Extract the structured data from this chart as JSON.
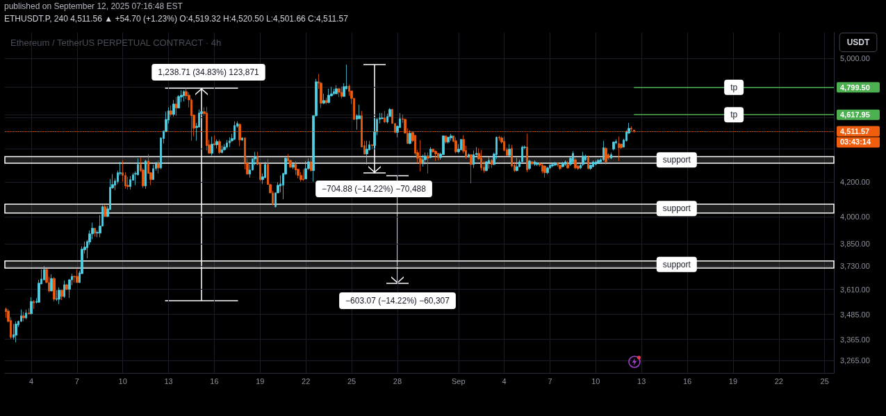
{
  "chart_data": {
    "type": "candlestick",
    "title": "published on September 12, 2025 07:16:48 EST",
    "subtitle": "ETHUSDT.P, 240 4,511.56 ▲ +54.70 (+1.23%) O:4,519.32 H:4,520.50 L:4,501.66 C:4,511.57",
    "ylabel": "USDT",
    "annotations": [
      "Ethereum / TetherUS PERPETUAL CONTRACT · 4h",
      "1,238.71 (34.83%) 123,871",
      "−704.88 (−14.22%) −70,488",
      "−603.07 (−14.22%) −60,307",
      "03:43:14"
    ],
    "x": [
      "2025-08-02T08:00",
      "2025-08-02T12:00",
      "2025-08-02T16:00",
      "2025-08-02T20:00",
      "2025-08-03T00:00",
      "2025-08-03T04:00",
      "2025-08-03T08:00",
      "2025-08-03T12:00",
      "2025-08-03T16:00",
      "2025-08-03T20:00",
      "2025-08-04T00:00",
      "2025-08-04T04:00",
      "2025-08-04T08:00",
      "2025-08-04T12:00",
      "2025-08-04T16:00",
      "2025-08-04T20:00",
      "2025-08-05T00:00",
      "2025-08-05T04:00",
      "2025-08-05T08:00",
      "2025-08-05T12:00",
      "2025-08-05T16:00",
      "2025-08-05T20:00",
      "2025-08-06T00:00",
      "2025-08-06T04:00",
      "2025-08-06T08:00",
      "2025-08-06T12:00",
      "2025-08-06T16:00",
      "2025-08-06T20:00",
      "2025-08-07T00:00",
      "2025-08-07T04:00",
      "2025-08-07T08:00",
      "2025-08-07T12:00",
      "2025-08-07T16:00",
      "2025-08-07T20:00",
      "2025-08-08T00:00",
      "2025-08-08T04:00",
      "2025-08-08T08:00",
      "2025-08-08T12:00",
      "2025-08-08T16:00",
      "2025-08-08T20:00",
      "2025-08-09T00:00",
      "2025-08-09T04:00",
      "2025-08-09T08:00",
      "2025-08-09T12:00",
      "2025-08-09T16:00",
      "2025-08-09T20:00",
      "2025-08-10T00:00",
      "2025-08-10T04:00",
      "2025-08-10T08:00",
      "2025-08-10T12:00",
      "2025-08-10T16:00",
      "2025-08-10T20:00",
      "2025-08-11T00:00",
      "2025-08-11T04:00",
      "2025-08-11T08:00",
      "2025-08-11T12:00",
      "2025-08-11T16:00",
      "2025-08-11T20:00",
      "2025-08-12T00:00",
      "2025-08-12T04:00",
      "2025-08-12T08:00",
      "2025-08-12T12:00",
      "2025-08-12T16:00",
      "2025-08-12T20:00",
      "2025-08-13T00:00",
      "2025-08-13T04:00",
      "2025-08-13T08:00",
      "2025-08-13T12:00",
      "2025-08-13T16:00",
      "2025-08-13T20:00",
      "2025-08-14T00:00",
      "2025-08-14T04:00",
      "2025-08-14T08:00",
      "2025-08-14T12:00",
      "2025-08-14T16:00",
      "2025-08-14T20:00",
      "2025-08-15T00:00",
      "2025-08-15T04:00",
      "2025-08-15T08:00",
      "2025-08-15T12:00",
      "2025-08-15T16:00",
      "2025-08-15T20:00",
      "2025-08-16T00:00",
      "2025-08-16T04:00",
      "2025-08-16T08:00",
      "2025-08-16T12:00",
      "2025-08-16T16:00",
      "2025-08-16T20:00",
      "2025-08-17T00:00",
      "2025-08-17T04:00",
      "2025-08-17T08:00",
      "2025-08-17T12:00",
      "2025-08-17T16:00",
      "2025-08-17T20:00",
      "2025-08-18T00:00",
      "2025-08-18T04:00",
      "2025-08-18T08:00",
      "2025-08-18T12:00",
      "2025-08-18T16:00",
      "2025-08-18T20:00",
      "2025-08-19T00:00",
      "2025-08-19T04:00",
      "2025-08-19T08:00",
      "2025-08-19T12:00",
      "2025-08-19T16:00",
      "2025-08-19T20:00",
      "2025-08-20T00:00",
      "2025-08-20T04:00",
      "2025-08-20T08:00",
      "2025-08-20T12:00",
      "2025-08-20T16:00",
      "2025-08-20T20:00",
      "2025-08-21T00:00",
      "2025-08-21T04:00",
      "2025-08-21T08:00",
      "2025-08-21T12:00",
      "2025-08-21T16:00",
      "2025-08-21T20:00",
      "2025-08-22T00:00",
      "2025-08-22T04:00",
      "2025-08-22T08:00",
      "2025-08-22T12:00",
      "2025-08-22T16:00",
      "2025-08-22T20:00",
      "2025-08-23T00:00",
      "2025-08-23T04:00",
      "2025-08-23T08:00",
      "2025-08-23T12:00",
      "2025-08-23T16:00",
      "2025-08-23T20:00",
      "2025-08-24T00:00",
      "2025-08-24T04:00",
      "2025-08-24T08:00",
      "2025-08-24T12:00",
      "2025-08-24T16:00",
      "2025-08-24T20:00",
      "2025-08-25T00:00",
      "2025-08-25T04:00",
      "2025-08-25T08:00",
      "2025-08-25T12:00",
      "2025-08-25T16:00",
      "2025-08-25T20:00",
      "2025-08-26T00:00",
      "2025-08-26T04:00",
      "2025-08-26T08:00",
      "2025-08-26T12:00",
      "2025-08-26T16:00",
      "2025-08-26T20:00",
      "2025-08-27T00:00",
      "2025-08-27T04:00",
      "2025-08-27T08:00",
      "2025-08-27T12:00",
      "2025-08-27T16:00",
      "2025-08-27T20:00",
      "2025-08-28T00:00",
      "2025-08-28T04:00",
      "2025-08-28T08:00",
      "2025-08-28T12:00",
      "2025-08-28T16:00",
      "2025-08-28T20:00",
      "2025-08-29T00:00",
      "2025-08-29T04:00",
      "2025-08-29T08:00",
      "2025-08-29T12:00",
      "2025-08-29T16:00",
      "2025-08-29T20:00",
      "2025-08-30T00:00",
      "2025-08-30T04:00",
      "2025-08-30T08:00",
      "2025-08-30T12:00",
      "2025-08-30T16:00",
      "2025-08-30T20:00",
      "2025-08-31T00:00",
      "2025-08-31T04:00",
      "2025-08-31T08:00",
      "2025-08-31T12:00",
      "2025-08-31T16:00",
      "2025-08-31T20:00",
      "2025-09-01T00:00",
      "2025-09-01T04:00",
      "2025-09-01T08:00",
      "2025-09-01T12:00",
      "2025-09-01T16:00",
      "2025-09-01T20:00",
      "2025-09-02T00:00",
      "2025-09-02T04:00",
      "2025-09-02T08:00",
      "2025-09-02T12:00",
      "2025-09-02T16:00",
      "2025-09-02T20:00",
      "2025-09-03T00:00",
      "2025-09-03T04:00",
      "2025-09-03T08:00",
      "2025-09-03T12:00",
      "2025-09-03T16:00",
      "2025-09-03T20:00",
      "2025-09-04T00:00",
      "2025-09-04T04:00",
      "2025-09-04T08:00",
      "2025-09-04T12:00",
      "2025-09-04T16:00",
      "2025-09-04T20:00",
      "2025-09-05T00:00",
      "2025-09-05T04:00",
      "2025-09-05T08:00",
      "2025-09-05T12:00",
      "2025-09-05T16:00",
      "2025-09-05T20:00",
      "2025-09-06T00:00",
      "2025-09-06T04:00",
      "2025-09-06T08:00",
      "2025-09-06T12:00",
      "2025-09-06T16:00",
      "2025-09-06T20:00",
      "2025-09-07T00:00",
      "2025-09-07T04:00",
      "2025-09-07T08:00",
      "2025-09-07T12:00",
      "2025-09-07T16:00",
      "2025-09-07T20:00",
      "2025-09-08T00:00",
      "2025-09-08T04:00",
      "2025-09-08T08:00",
      "2025-09-08T12:00",
      "2025-09-08T16:00",
      "2025-09-08T20:00",
      "2025-09-09T00:00",
      "2025-09-09T04:00",
      "2025-09-09T08:00",
      "2025-09-09T12:00",
      "2025-09-09T16:00",
      "2025-09-09T20:00",
      "2025-09-10T00:00",
      "2025-09-10T04:00",
      "2025-09-10T08:00",
      "2025-09-10T12:00",
      "2025-09-10T16:00",
      "2025-09-10T20:00",
      "2025-09-11T00:00",
      "2025-09-11T04:00",
      "2025-09-11T08:00",
      "2025-09-11T12:00",
      "2025-09-11T16:00",
      "2025-09-11T20:00",
      "2025-09-12T00:00",
      "2025-09-12T04:00",
      "2025-09-12T08:00",
      "2025-09-12T12:00"
    ],
    "ohlc": [
      [
        3512,
        3519,
        3468,
        3498
      ],
      [
        3502,
        3512,
        3445,
        3451
      ],
      [
        3455,
        3471,
        3367,
        3374
      ],
      [
        3374,
        3438,
        3364,
        3387
      ],
      [
        3384,
        3451,
        3350,
        3438
      ],
      [
        3434,
        3455,
        3424,
        3451
      ],
      [
        3451,
        3509,
        3448,
        3478
      ],
      [
        3478,
        3498,
        3451,
        3468
      ],
      [
        3468,
        3509,
        3461,
        3492
      ],
      [
        3492,
        3515,
        3485,
        3488
      ],
      [
        3488,
        3570,
        3485,
        3549
      ],
      [
        3549,
        3556,
        3512,
        3542
      ],
      [
        3545,
        3566,
        3539,
        3549
      ],
      [
        3545,
        3659,
        3542,
        3642
      ],
      [
        3638,
        3713,
        3636,
        3663
      ],
      [
        3659,
        3731,
        3656,
        3713
      ],
      [
        3713,
        3716,
        3642,
        3645
      ],
      [
        3645,
        3674,
        3595,
        3602
      ],
      [
        3602,
        3688,
        3600,
        3666
      ],
      [
        3666,
        3674,
        3549,
        3560
      ],
      [
        3560,
        3606,
        3552,
        3563
      ],
      [
        3560,
        3620,
        3536,
        3606
      ],
      [
        3606,
        3608,
        3556,
        3574
      ],
      [
        3574,
        3656,
        3567,
        3634
      ],
      [
        3634,
        3638,
        3606,
        3610
      ],
      [
        3610,
        3663,
        3567,
        3659
      ],
      [
        3659,
        3691,
        3631,
        3677
      ],
      [
        3677,
        3681,
        3645,
        3674
      ],
      [
        3677,
        3713,
        3645,
        3645
      ],
      [
        3645,
        3706,
        3643,
        3695
      ],
      [
        3691,
        3836,
        3689,
        3821
      ],
      [
        3817,
        3862,
        3798,
        3832
      ],
      [
        3828,
        3870,
        3772,
        3862
      ],
      [
        3859,
        3923,
        3844,
        3904
      ],
      [
        3904,
        3966,
        3874,
        3935
      ],
      [
        3935,
        3937,
        3889,
        3908
      ],
      [
        3908,
        3923,
        3885,
        3912
      ],
      [
        3908,
        4009,
        3885,
        3947
      ],
      [
        3947,
        4064,
        3945,
        4056
      ],
      [
        4056,
        4068,
        4001,
        4001
      ],
      [
        4001,
        4060,
        3997,
        4044
      ],
      [
        4040,
        4218,
        4038,
        4169
      ],
      [
        4165,
        4247,
        4160,
        4185
      ],
      [
        4181,
        4222,
        4152,
        4206
      ],
      [
        4202,
        4268,
        4189,
        4255
      ],
      [
        4251,
        4321,
        4239,
        4255
      ],
      [
        4255,
        4330,
        4202,
        4239
      ],
      [
        4239,
        4259,
        4160,
        4177
      ],
      [
        4181,
        4231,
        4156,
        4173
      ],
      [
        4173,
        4235,
        4156,
        4214
      ],
      [
        4210,
        4255,
        4210,
        4243
      ],
      [
        4247,
        4263,
        4181,
        4251
      ],
      [
        4243,
        4343,
        4239,
        4305
      ],
      [
        4305,
        4347,
        4259,
        4268
      ],
      [
        4272,
        4284,
        4165,
        4177
      ],
      [
        4177,
        4334,
        4160,
        4326
      ],
      [
        4326,
        4369,
        4251,
        4251
      ],
      [
        4255,
        4259,
        4181,
        4214
      ],
      [
        4214,
        4305,
        4214,
        4280
      ],
      [
        4280,
        4321,
        4268,
        4309
      ],
      [
        4309,
        4330,
        4251,
        4284
      ],
      [
        4284,
        4473,
        4276,
        4469
      ],
      [
        4465,
        4517,
        4434,
        4512
      ],
      [
        4508,
        4638,
        4508,
        4587
      ],
      [
        4583,
        4666,
        4561,
        4643
      ],
      [
        4643,
        4679,
        4606,
        4620
      ],
      [
        4620,
        4715,
        4606,
        4688
      ],
      [
        4688,
        4734,
        4611,
        4661
      ],
      [
        4661,
        4747,
        4661,
        4738
      ],
      [
        4734,
        4780,
        4700,
        4747
      ],
      [
        4742,
        4780,
        4705,
        4771
      ],
      [
        4771,
        4795,
        4720,
        4742
      ],
      [
        4747,
        4766,
        4665,
        4715
      ],
      [
        4715,
        4725,
        4451,
        4611
      ],
      [
        4615,
        4620,
        4478,
        4530
      ],
      [
        4534,
        4565,
        4451,
        4543
      ],
      [
        4538,
        4652,
        4538,
        4629
      ],
      [
        4625,
        4656,
        4611,
        4638
      ],
      [
        4638,
        4666,
        4611,
        4625
      ],
      [
        4629,
        4670,
        4391,
        4421
      ],
      [
        4426,
        4456,
        4373,
        4373
      ],
      [
        4373,
        4478,
        4360,
        4430
      ],
      [
        4434,
        4486,
        4421,
        4426
      ],
      [
        4426,
        4460,
        4404,
        4447
      ],
      [
        4447,
        4460,
        4369,
        4378
      ],
      [
        4378,
        4421,
        4373,
        4395
      ],
      [
        4395,
        4430,
        4391,
        4412
      ],
      [
        4412,
        4456,
        4404,
        4438
      ],
      [
        4438,
        4473,
        4412,
        4451
      ],
      [
        4451,
        4495,
        4443,
        4465
      ],
      [
        4460,
        4575,
        4456,
        4548
      ],
      [
        4543,
        4575,
        4534,
        4561
      ],
      [
        4556,
        4561,
        4417,
        4456
      ],
      [
        4456,
        4473,
        4451,
        4469
      ],
      [
        4469,
        4473,
        4276,
        4313
      ],
      [
        4313,
        4343,
        4243,
        4247
      ],
      [
        4247,
        4305,
        4226,
        4272
      ],
      [
        4272,
        4343,
        4268,
        4339
      ],
      [
        4339,
        4382,
        4301,
        4352
      ],
      [
        4352,
        4382,
        4301,
        4305
      ],
      [
        4309,
        4313,
        4206,
        4214
      ],
      [
        4214,
        4251,
        4189,
        4231
      ],
      [
        4226,
        4321,
        4222,
        4305
      ],
      [
        4305,
        4339,
        4185,
        4185
      ],
      [
        4185,
        4189,
        4134,
        4136
      ],
      [
        4136,
        4148,
        4064,
        4071
      ],
      [
        4056,
        4138,
        4052,
        4136
      ],
      [
        4136,
        4198,
        4134,
        4181
      ],
      [
        4177,
        4239,
        4140,
        4189
      ],
      [
        4181,
        4255,
        4099,
        4251
      ],
      [
        4247,
        4347,
        4243,
        4343
      ],
      [
        4343,
        4369,
        4321,
        4326
      ],
      [
        4330,
        4334,
        4284,
        4288
      ],
      [
        4288,
        4321,
        4276,
        4305
      ],
      [
        4305,
        4326,
        4243,
        4272
      ],
      [
        4276,
        4280,
        4222,
        4239
      ],
      [
        4239,
        4259,
        4202,
        4214
      ],
      [
        4218,
        4276,
        4206,
        4214
      ],
      [
        4218,
        4326,
        4218,
        4280
      ],
      [
        4280,
        4343,
        4272,
        4321
      ],
      [
        4321,
        4347,
        4263,
        4268
      ],
      [
        4268,
        4615,
        4202,
        4611
      ],
      [
        4611,
        4857,
        4606,
        4837
      ],
      [
        4837,
        4890,
        4790,
        4828
      ],
      [
        4828,
        4837,
        4661,
        4693
      ],
      [
        4693,
        4756,
        4688,
        4711
      ],
      [
        4711,
        4729,
        4688,
        4697
      ],
      [
        4697,
        4790,
        4693,
        4747
      ],
      [
        4742,
        4804,
        4738,
        4756
      ],
      [
        4756,
        4790,
        4747,
        4771
      ],
      [
        4756,
        4813,
        4752,
        4790
      ],
      [
        4790,
        4795,
        4734,
        4766
      ],
      [
        4766,
        4804,
        4725,
        4738
      ],
      [
        4738,
        4828,
        4738,
        4804
      ],
      [
        4790,
        4956,
        4785,
        4808
      ],
      [
        4808,
        4818,
        4742,
        4771
      ],
      [
        4775,
        4775,
        4688,
        4725
      ],
      [
        4725,
        4727,
        4583,
        4588
      ],
      [
        4588,
        4620,
        4521,
        4611
      ],
      [
        4592,
        4683,
        4588,
        4611
      ],
      [
        4611,
        4643,
        4412,
        4412
      ],
      [
        4421,
        4451,
        4365,
        4369
      ],
      [
        4369,
        4451,
        4305,
        4399
      ],
      [
        4395,
        4451,
        4391,
        4426
      ],
      [
        4426,
        4430,
        4399,
        4421
      ],
      [
        4421,
        4597,
        4399,
        4508
      ],
      [
        4508,
        4597,
        4486,
        4588
      ],
      [
        4588,
        4629,
        4561,
        4597
      ],
      [
        4592,
        4629,
        4588,
        4597
      ],
      [
        4597,
        4643,
        4565,
        4570
      ],
      [
        4570,
        4625,
        4561,
        4606
      ],
      [
        4606,
        4661,
        4606,
        4652
      ],
      [
        4652,
        4656,
        4561,
        4561
      ],
      [
        4561,
        4561,
        4499,
        4504
      ],
      [
        4504,
        4548,
        4473,
        4543
      ],
      [
        4534,
        4629,
        4534,
        4592
      ],
      [
        4592,
        4620,
        4565,
        4588
      ],
      [
        4588,
        4592,
        4499,
        4499
      ],
      [
        4499,
        4530,
        4434,
        4434
      ],
      [
        4434,
        4517,
        4430,
        4499
      ],
      [
        4504,
        4508,
        4443,
        4451
      ],
      [
        4486,
        4486,
        4360,
        4373
      ],
      [
        4378,
        4395,
        4313,
        4343
      ],
      [
        4343,
        4456,
        4263,
        4309
      ],
      [
        4309,
        4365,
        4292,
        4334
      ],
      [
        4334,
        4378,
        4305,
        4356
      ],
      [
        4356,
        4378,
        4251,
        4343
      ],
      [
        4347,
        4412,
        4343,
        4399
      ],
      [
        4399,
        4399,
        4378,
        4382
      ],
      [
        4386,
        4391,
        4326,
        4369
      ],
      [
        4373,
        4373,
        4330,
        4347
      ],
      [
        4347,
        4378,
        4334,
        4369
      ],
      [
        4365,
        4486,
        4365,
        4482
      ],
      [
        4482,
        4482,
        4434,
        4443
      ],
      [
        4443,
        4478,
        4434,
        4473
      ],
      [
        4469,
        4495,
        4451,
        4482
      ],
      [
        4482,
        4482,
        4443,
        4447
      ],
      [
        4451,
        4473,
        4373,
        4382
      ],
      [
        4382,
        4430,
        4373,
        4399
      ],
      [
        4395,
        4460,
        4391,
        4460
      ],
      [
        4460,
        4486,
        4373,
        4386
      ],
      [
        4391,
        4421,
        4339,
        4352
      ],
      [
        4352,
        4373,
        4347,
        4365
      ],
      [
        4365,
        4365,
        4192,
        4305
      ],
      [
        4305,
        4391,
        4284,
        4365
      ],
      [
        4365,
        4412,
        4356,
        4373
      ],
      [
        4373,
        4404,
        4334,
        4339
      ],
      [
        4343,
        4395,
        4268,
        4284
      ],
      [
        4288,
        4326,
        4255,
        4268
      ],
      [
        4268,
        4326,
        4263,
        4321
      ],
      [
        4317,
        4352,
        4280,
        4330
      ],
      [
        4330,
        4339,
        4284,
        4305
      ],
      [
        4305,
        4378,
        4301,
        4369
      ],
      [
        4365,
        4478,
        4339,
        4473
      ],
      [
        4473,
        4482,
        4451,
        4469
      ],
      [
        4469,
        4478,
        4434,
        4443
      ],
      [
        4447,
        4478,
        4386,
        4391
      ],
      [
        4395,
        4408,
        4356,
        4360
      ],
      [
        4360,
        4430,
        4356,
        4399
      ],
      [
        4404,
        4426,
        4288,
        4296
      ],
      [
        4301,
        4321,
        4259,
        4268
      ],
      [
        4268,
        4347,
        4263,
        4292
      ],
      [
        4292,
        4334,
        4288,
        4321
      ],
      [
        4321,
        4421,
        4321,
        4412
      ],
      [
        4408,
        4421,
        4399,
        4412
      ],
      [
        4412,
        4495,
        4259,
        4272
      ],
      [
        4280,
        4334,
        4272,
        4326
      ],
      [
        4321,
        4326,
        4301,
        4309
      ],
      [
        4305,
        4330,
        4296,
        4321
      ],
      [
        4305,
        4321,
        4296,
        4313
      ],
      [
        4309,
        4317,
        4292,
        4301
      ],
      [
        4301,
        4309,
        4251,
        4263
      ],
      [
        4296,
        4301,
        4226,
        4255
      ],
      [
        4255,
        4292,
        4247,
        4284
      ],
      [
        4284,
        4309,
        4276,
        4301
      ],
      [
        4296,
        4313,
        4288,
        4305
      ],
      [
        4301,
        4321,
        4296,
        4313
      ],
      [
        4313,
        4317,
        4292,
        4301
      ],
      [
        4301,
        4305,
        4272,
        4280
      ],
      [
        4292,
        4321,
        4288,
        4313
      ],
      [
        4305,
        4330,
        4296,
        4321
      ],
      [
        4305,
        4326,
        4280,
        4284
      ],
      [
        4305,
        4352,
        4296,
        4343
      ],
      [
        4321,
        4386,
        4313,
        4373
      ],
      [
        4334,
        4352,
        4276,
        4284
      ],
      [
        4296,
        4305,
        4272,
        4280
      ],
      [
        4284,
        4309,
        4276,
        4301
      ],
      [
        4305,
        4382,
        4296,
        4356
      ],
      [
        4334,
        4365,
        4326,
        4356
      ],
      [
        4347,
        4360,
        4276,
        4280
      ],
      [
        4280,
        4305,
        4272,
        4301
      ],
      [
        4292,
        4330,
        4288,
        4321
      ],
      [
        4305,
        4330,
        4301,
        4321
      ],
      [
        4317,
        4339,
        4309,
        4330
      ],
      [
        4321,
        4343,
        4313,
        4334
      ],
      [
        4334,
        4451,
        4326,
        4408
      ],
      [
        4404,
        4412,
        4305,
        4321
      ],
      [
        4365,
        4373,
        4334,
        4343
      ],
      [
        4343,
        4378,
        4339,
        4365
      ],
      [
        4399,
        4447,
        4391,
        4443
      ],
      [
        4438,
        4460,
        4430,
        4447
      ],
      [
        4434,
        4478,
        4326,
        4408
      ],
      [
        4430,
        4434,
        4399,
        4408
      ],
      [
        4412,
        4465,
        4408,
        4456
      ],
      [
        4451,
        4517,
        4447,
        4508
      ],
      [
        4499,
        4565,
        4495,
        4530
      ],
      [
        4530,
        4543,
        4512,
        4525
      ],
      [
        4519.32,
        4520.5,
        4501.66,
        4511.57
      ]
    ],
    "colors": [
      "#ef5b0c",
      "#ef5b0c",
      "#ef5b0c",
      "#4fd1e4",
      "#4fd1e4",
      "#4fd1e4",
      "#4fd1e4",
      "#ef5b0c",
      "#4fd1e4",
      "#ef5b0c",
      "#4fd1e4",
      "#ef5b0c",
      "#4fd1e4",
      "#4fd1e4",
      "#4fd1e4",
      "#4fd1e4",
      "#ef5b0c",
      "#ef5b0c",
      "#4fd1e4",
      "#ef5b0c",
      "#4fd1e4",
      "#4fd1e4",
      "#ef5b0c",
      "#4fd1e4",
      "#ef5b0c",
      "#4fd1e4",
      "#4fd1e4",
      "#ef5b0c",
      "#ef5b0c",
      "#4fd1e4",
      "#4fd1e4",
      "#4fd1e4",
      "#4fd1e4",
      "#4fd1e4",
      "#4fd1e4",
      "#ef5b0c",
      "#4fd1e4",
      "#4fd1e4",
      "#4fd1e4",
      "#ef5b0c",
      "#4fd1e4",
      "#4fd1e4",
      "#4fd1e4",
      "#4fd1e4",
      "#4fd1e4",
      "#4fd1e4",
      "#ef5b0c",
      "#ef5b0c",
      "#ef5b0c",
      "#4fd1e4",
      "#4fd1e4",
      "#4fd1e4",
      "#4fd1e4",
      "#ef5b0c",
      "#ef5b0c",
      "#4fd1e4",
      "#ef5b0c",
      "#ef5b0c",
      "#4fd1e4",
      "#4fd1e4",
      "#ef5b0c",
      "#4fd1e4",
      "#4fd1e4",
      "#4fd1e4",
      "#4fd1e4",
      "#ef5b0c",
      "#4fd1e4",
      "#ef5b0c",
      "#4fd1e4",
      "#4fd1e4",
      "#4fd1e4",
      "#ef5b0c",
      "#ef5b0c",
      "#ef5b0c",
      "#ef5b0c",
      "#4fd1e4",
      "#4fd1e4",
      "#4fd1e4",
      "#ef5b0c",
      "#ef5b0c",
      "#ef5b0c",
      "#4fd1e4",
      "#ef5b0c",
      "#4fd1e4",
      "#ef5b0c",
      "#4fd1e4",
      "#4fd1e4",
      "#4fd1e4",
      "#4fd1e4",
      "#4fd1e4",
      "#4fd1e4",
      "#4fd1e4",
      "#ef5b0c",
      "#4fd1e4",
      "#ef5b0c",
      "#ef5b0c",
      "#4fd1e4",
      "#4fd1e4",
      "#4fd1e4",
      "#ef5b0c",
      "#ef5b0c",
      "#4fd1e4",
      "#4fd1e4",
      "#ef5b0c",
      "#ef5b0c",
      "#ef5b0c",
      "#4fd1e4",
      "#4fd1e4",
      "#4fd1e4",
      "#4fd1e4",
      "#4fd1e4",
      "#ef5b0c",
      "#ef5b0c",
      "#4fd1e4",
      "#ef5b0c",
      "#ef5b0c",
      "#ef5b0c",
      "#ef5b0c",
      "#4fd1e4",
      "#4fd1e4",
      "#ef5b0c",
      "#4fd1e4",
      "#4fd1e4",
      "#ef5b0c",
      "#ef5b0c",
      "#4fd1e4",
      "#ef5b0c",
      "#4fd1e4",
      "#4fd1e4",
      "#4fd1e4",
      "#4fd1e4",
      "#ef5b0c",
      "#ef5b0c",
      "#4fd1e4",
      "#4fd1e4",
      "#ef5b0c",
      "#ef5b0c",
      "#ef5b0c",
      "#4fd1e4",
      "#4fd1e4",
      "#ef5b0c",
      "#ef5b0c",
      "#4fd1e4",
      "#4fd1e4",
      "#ef5b0c",
      "#4fd1e4",
      "#4fd1e4",
      "#4fd1e4",
      "#4fd1e4",
      "#ef5b0c",
      "#4fd1e4",
      "#4fd1e4",
      "#ef5b0c",
      "#ef5b0c",
      "#4fd1e4",
      "#4fd1e4",
      "#ef5b0c",
      "#ef5b0c",
      "#ef5b0c",
      "#4fd1e4",
      "#ef5b0c",
      "#ef5b0c",
      "#ef5b0c",
      "#ef5b0c",
      "#4fd1e4",
      "#4fd1e4",
      "#ef5b0c",
      "#4fd1e4",
      "#ef5b0c",
      "#ef5b0c",
      "#ef5b0c",
      "#4fd1e4",
      "#4fd1e4",
      "#ef5b0c",
      "#4fd1e4",
      "#4fd1e4",
      "#ef5b0c",
      "#ef5b0c",
      "#4fd1e4",
      "#4fd1e4",
      "#ef5b0c",
      "#ef5b0c",
      "#4fd1e4",
      "#ef5b0c",
      "#4fd1e4",
      "#4fd1e4",
      "#ef5b0c",
      "#ef5b0c",
      "#ef5b0c",
      "#4fd1e4",
      "#4fd1e4",
      "#ef5b0c",
      "#4fd1e4",
      "#4fd1e4",
      "#ef5b0c",
      "#ef5b0c",
      "#ef5b0c",
      "#ef5b0c",
      "#4fd1e4",
      "#ef5b0c",
      "#ef5b0c",
      "#4fd1e4",
      "#4fd1e4",
      "#4fd1e4",
      "#4fd1e4",
      "#ef5b0c",
      "#4fd1e4",
      "#ef5b0c",
      "#4fd1e4",
      "#4fd1e4",
      "#ef5b0c",
      "#ef5b0c",
      "#ef5b0c",
      "#4fd1e4",
      "#4fd1e4",
      "#4fd1e4",
      "#4fd1e4",
      "#ef5b0c",
      "#ef5b0c",
      "#4fd1e4",
      "#4fd1e4",
      "#ef5b0c",
      "#4fd1e4",
      "#4fd1e4",
      "#ef5b0c",
      "#ef5b0c",
      "#4fd1e4",
      "#4fd1e4",
      "#4fd1e4",
      "#ef5b0c",
      "#4fd1e4",
      "#4fd1e4",
      "#4fd1e4",
      "#4fd1e4",
      "#4fd1e4",
      "#4fd1e4",
      "#ef5b0c",
      "#ef5b0c",
      "#4fd1e4",
      "#4fd1e4",
      "#4fd1e4",
      "#ef5b0c",
      "#ef5b0c",
      "#4fd1e4",
      "#4fd1e4",
      "#4fd1e4",
      "#ef5b0c",
      "#ef5b0c"
    ],
    "xlim": [
      "2025-08-02T06:30",
      "2025-09-25T14:30"
    ],
    "ylim": [
      3209,
      5184
    ],
    "log": true,
    "grid": true,
    "xticks": [
      {
        "value": "2025-08-04",
        "label": "4"
      },
      {
        "value": "2025-08-07",
        "label": "7"
      },
      {
        "value": "2025-08-10",
        "label": "10"
      },
      {
        "value": "2025-08-13",
        "label": "13"
      },
      {
        "value": "2025-08-16",
        "label": "16"
      },
      {
        "value": "2025-08-19",
        "label": "19"
      },
      {
        "value": "2025-08-22",
        "label": "22"
      },
      {
        "value": "2025-08-25",
        "label": "25"
      },
      {
        "value": "2025-08-28",
        "label": "28"
      },
      {
        "value": "2025-09-01",
        "label": "Sep"
      },
      {
        "value": "2025-09-04",
        "label": "4"
      },
      {
        "value": "2025-09-07",
        "label": "7"
      },
      {
        "value": "2025-09-10",
        "label": "10"
      },
      {
        "value": "2025-09-13",
        "label": "13"
      },
      {
        "value": "2025-09-16",
        "label": "16"
      },
      {
        "value": "2025-09-19",
        "label": "19"
      },
      {
        "value": "2025-09-22",
        "label": "22"
      },
      {
        "value": "2025-09-25",
        "label": "25"
      }
    ],
    "yticks": [
      {
        "value": 5000,
        "label": "5,000.00"
      },
      {
        "value": 4800,
        "label": null
      },
      {
        "value": 4799.5,
        "label": "4,799.50"
      },
      {
        "value": 4617.95,
        "label": "4,617.95"
      },
      {
        "value": 4600,
        "label": null
      },
      {
        "value": 4511.57,
        "label": "4,511.57"
      },
      {
        "value": 4400,
        "label": null
      },
      {
        "value": 4200,
        "label": "4,200.00"
      },
      {
        "value": 4000,
        "label": "4,000.00"
      },
      {
        "value": 3850,
        "label": "3,850.00"
      },
      {
        "value": 3730,
        "label": "3,730.00"
      },
      {
        "value": 3610,
        "label": "3,610.00"
      },
      {
        "value": 3485,
        "label": "3,485.00"
      },
      {
        "value": 3365,
        "label": "3,365.00"
      },
      {
        "value": 3265,
        "label": "3,265.00"
      }
    ],
    "ref_lines": [
      {
        "axis": "y",
        "value": 4799.5,
        "label": "tp",
        "color": "#4caf50"
      },
      {
        "axis": "y",
        "value": 4617.95,
        "label": "tp",
        "color": "#4caf50"
      },
      {
        "axis": "y",
        "value": 4511.57,
        "color": "#f05d0e",
        "line_style": "dotted"
      }
    ],
    "bands": [
      {
        "axis": "y",
        "from": 4313,
        "to": 4353,
        "label": "support",
        "color": "#ffffff"
      },
      {
        "axis": "y",
        "from": 4020,
        "to": 4071,
        "label": "support",
        "color": "#ffffff"
      },
      {
        "axis": "y",
        "from": 3720,
        "to": 3758,
        "label": "support",
        "color": "#ffffff"
      }
    ]
  }
}
